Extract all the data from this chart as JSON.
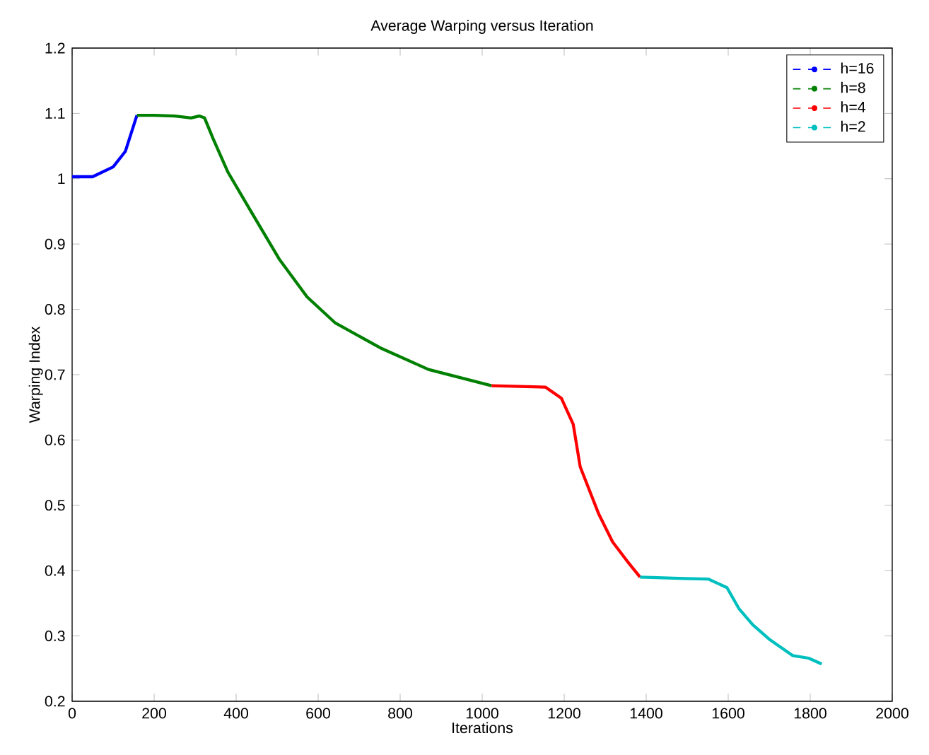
{
  "chart_data": {
    "type": "line",
    "title": "Average Warping versus Iteration",
    "xlabel": "Iterations",
    "ylabel": "Warping Index",
    "xlim": [
      0,
      2000
    ],
    "ylim": [
      0.2,
      1.2
    ],
    "xticks": [
      0,
      200,
      400,
      600,
      800,
      1000,
      1200,
      1400,
      1600,
      1800,
      2000
    ],
    "yticks": [
      0.2,
      0.3,
      0.4,
      0.5,
      0.6,
      0.7,
      0.8,
      0.9,
      1,
      1.1,
      1.2
    ],
    "grid": false,
    "legend": "top right",
    "line_style": "solid",
    "marker": "none",
    "series": [
      {
        "name": "h=16",
        "color": "#0000ff",
        "x": [
          0,
          50,
          100,
          130,
          158
        ],
        "values": [
          1.003,
          1.003,
          1.018,
          1.042,
          1.097
        ]
      },
      {
        "name": "h=8",
        "color": "#008000",
        "x": [
          158,
          200,
          250,
          290,
          310,
          323,
          344,
          380,
          437,
          505,
          573,
          642,
          755,
          869,
          1023
        ],
        "values": [
          1.097,
          1.097,
          1.096,
          1.093,
          1.096,
          1.093,
          1.061,
          1.01,
          0.949,
          0.877,
          0.819,
          0.779,
          0.74,
          0.708,
          0.683
        ]
      },
      {
        "name": "h=4",
        "color": "#ff0000",
        "x": [
          1023,
          1154,
          1193,
          1222,
          1239,
          1284,
          1318,
          1353,
          1385
        ],
        "values": [
          0.683,
          0.681,
          0.664,
          0.624,
          0.559,
          0.487,
          0.444,
          0.415,
          0.39
        ]
      },
      {
        "name": "h=2",
        "color": "#00bfbf",
        "x": [
          1385,
          1495,
          1552,
          1597,
          1626,
          1660,
          1700,
          1757,
          1796,
          1828
        ],
        "values": [
          0.39,
          0.388,
          0.387,
          0.374,
          0.342,
          0.317,
          0.295,
          0.27,
          0.266,
          0.257
        ]
      }
    ]
  }
}
